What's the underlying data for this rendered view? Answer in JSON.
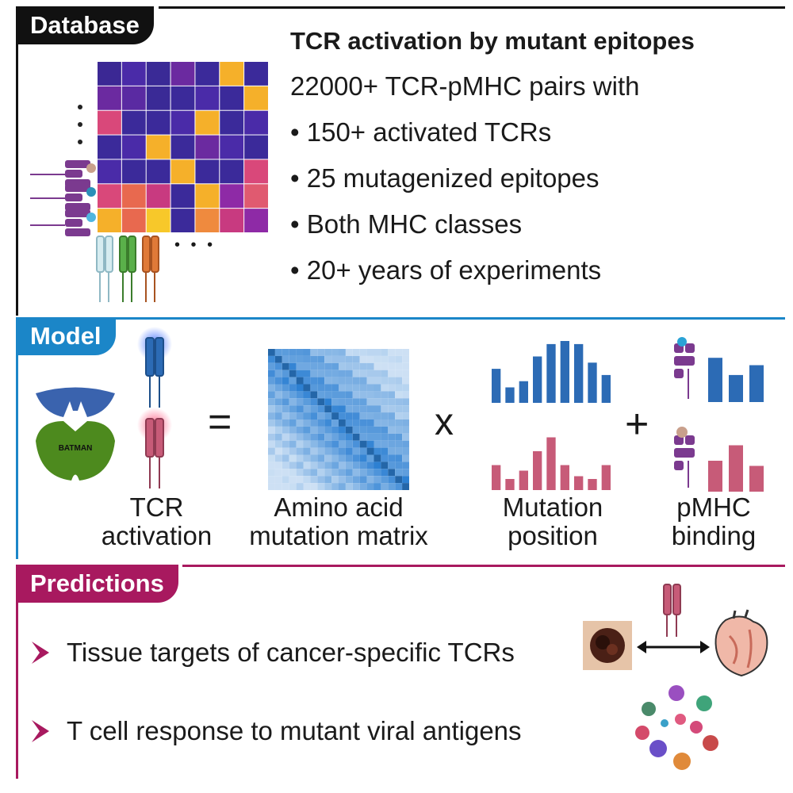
{
  "database": {
    "tab": "Database",
    "title": "TCR activation by mutant epitopes",
    "subtitle": "22000+ TCR-pMHC pairs with",
    "bullets": [
      "150+ activated TCRs",
      "25 mutagenized epitopes",
      "Both MHC classes",
      "20+ years of experiments"
    ],
    "ellipsis": "• • •",
    "heatmap_colors": [
      [
        "#3b2894",
        "#4a2ba8",
        "#3a2a96",
        "#6b2aa0",
        "#3b2a9a",
        "#f5b02a",
        "#3b2a9a"
      ],
      [
        "#6b2aa0",
        "#5a2aa2",
        "#3a2a96",
        "#3b2a9a",
        "#4a2ba8",
        "#3b2a9a",
        "#f5b02a"
      ],
      [
        "#d9487a",
        "#3b2a9a",
        "#3b2a9a",
        "#4a2ba8",
        "#f5b02a",
        "#3b2a9a",
        "#4a2ba8"
      ],
      [
        "#3b2a9a",
        "#4a2ba8",
        "#f5b02a",
        "#3b2a9a",
        "#6b2aa0",
        "#4a2ba8",
        "#3b2a9a"
      ],
      [
        "#4a2ba8",
        "#3b2a9a",
        "#3b2a9a",
        "#f5b02a",
        "#3b2a9a",
        "#3b2a9a",
        "#d9487a"
      ],
      [
        "#d9487a",
        "#e8694f",
        "#c83a80",
        "#3b2a9a",
        "#f5b02a",
        "#8e2aa6",
        "#e05a70"
      ],
      [
        "#f5b02a",
        "#e8694f",
        "#f7c82a",
        "#3b2a9a",
        "#ef8a3e",
        "#c83a80",
        "#8e2aa6"
      ]
    ]
  },
  "model": {
    "tab": "Model",
    "equals": "=",
    "times": "x",
    "plus": "+",
    "logo_text": "BATMAN",
    "labels": {
      "tcr": [
        "TCR",
        "activation"
      ],
      "matrix": [
        "Amino acid",
        "mutation matrix"
      ],
      "position": [
        "Mutation",
        "position"
      ],
      "binding": [
        "pMHC",
        "binding"
      ]
    },
    "blue_bars": [
      0.55,
      0.25,
      0.35,
      0.75,
      0.95,
      1.0,
      0.95,
      0.65,
      0.45
    ],
    "pink_bars": [
      0.45,
      0.2,
      0.35,
      0.7,
      0.95,
      0.45,
      0.25,
      0.2,
      0.45
    ],
    "binding_blue_bars": [
      0.9,
      0.55,
      0.75
    ],
    "binding_pink_bars": [
      0.6,
      0.9,
      0.5
    ],
    "colors": {
      "blue": "#2c6bb5",
      "pink": "#c75b78",
      "green": "#4d8a1e",
      "accent": "#1b86c8"
    }
  },
  "predictions": {
    "tab": "Predictions",
    "items": [
      "Tissue targets of cancer-specific TCRs",
      "T cell response to mutant viral antigens"
    ],
    "color": "#a8195f"
  }
}
